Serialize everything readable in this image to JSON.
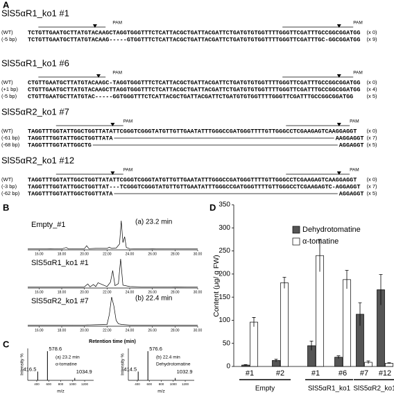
{
  "panel_labels": [
    "A",
    "B",
    "C",
    "D"
  ],
  "sequences": {
    "blocks": [
      {
        "title": "SlS5αR1_ko1 #1",
        "pam": [
          "PAM",
          "PAM"
        ],
        "rows": [
          {
            "label": "(WT)",
            "seq": "TCTGTTGAATGCTTATGTACAAGCTAGGTGGGTTTCTCATTACGCTGATTACGATTCTGATGTGTGGTTTTGGGTTCGATTTGCCGGCGGATGG",
            "count": "(x 0)"
          },
          {
            "label": "(-5 bp)",
            "seq": "TCTGTTGAATGCTTATGTACAAG-----GTGGTTTCTCATTACGCTGATTACGATTCTGATGTGTGGTTTTGGGTTCGATTTGC-GGCGGATGG",
            "count": "(x 9)"
          }
        ]
      },
      {
        "title": "SlS5αR1_ko1 #6",
        "pam": [
          "PAM",
          "PAM"
        ],
        "rows": [
          {
            "label": "(WT)",
            "seq": "CTGTTGAATGCTTATGTACAAGC-TAGGTGGGTTTCTCATTACGCTGATTACGATTCTGATGTGTGGTTTTGGGTTCGATTTGCCGGCGGATGG",
            "count": "(x 0)"
          },
          {
            "label": "(+1 bp)",
            "seq": "CTGTTGAATGCTTATGTACAAGCTTAGGTGGGTTTCTCATTACGCTGATTACGATTCTGATGTGTGGTTTTGGGTTCGATTTGCCGGCGGATGG",
            "count": "(x 4)"
          },
          {
            "label": "(-5 bp)",
            "seq": "CTGTTGAATGCTTATGTAC-----GGTGGGTTTCTCATTACGCTGATTACGATTCTGATGTGTGGTTTTGGGTTCGATTTGCCGGCGGATGG",
            "count": "(x 5)"
          }
        ]
      },
      {
        "title": "SlS5αR2_ko1 #7",
        "pam": [
          "PAM",
          "PAM"
        ],
        "rows": [
          {
            "label": "(WT)",
            "seq": "TAGGTTTGGTATTGGCTGGTTATATTCGGGTCGGGTATGTTGTTGAATATTTGGGCCGATGGGTTTTGTTGGGCCTCGAAGAGTCAAGGAGGT",
            "count": "(x 0)"
          },
          {
            "label": "(-61 bp)",
            "left": "TAGGTTTGGTATTGGCTGGTTATA",
            "right": "AAGGAGGT",
            "count": "(x 7)"
          },
          {
            "label": "(-68 bp)",
            "left": "TAGGTTTGGTATTGGCTG",
            "right": "AGGAGGT",
            "count": "(x 5)"
          }
        ]
      },
      {
        "title": "SlS5αR2_ko1 #12",
        "pam": [
          "PAM",
          "PAM"
        ],
        "rows": [
          {
            "label": "(WT)",
            "seq": "TAGGTTTGGTATTGGCTGGTTATATTCGGGTCGGGTATGTTGTTGAATATTTGGGCCGATGGGTTTTGTTGGGCCTCGAAGAGTCAAGGAGGT",
            "count": "(x 0)"
          },
          {
            "label": "(-3 bp)",
            "seq": "TAGGTTTGGTATTGGCTGGTTAT---TCGGGTCGGGTATGTTGTTGAATATTTGGGCCGATGGGTTTTGTTGGGCCTCGAAGAGTC-AGGAGGT",
            "count": "(x 7)"
          },
          {
            "label": "(-62 bp)",
            "left": "TAGGTTTGGTATTGGCTGGTTATA",
            "right": "AGGAGGT",
            "count": "(x 5)"
          }
        ]
      }
    ]
  },
  "chromatograms": {
    "xlabel": "Retention time (min)",
    "xlim": [
      15,
      30
    ],
    "ylim": [
      0,
      100
    ],
    "xticks": [
      {
        "value": 16,
        "label": "16.00"
      },
      {
        "value": 18,
        "label": "18.00"
      },
      {
        "value": 20,
        "label": "20.00"
      },
      {
        "value": 22,
        "label": "22.00"
      },
      {
        "value": 24,
        "label": "24.00"
      },
      {
        "value": 26,
        "label": "26.00"
      },
      {
        "value": 28,
        "label": "28.00"
      },
      {
        "value": 30,
        "label": "30.00"
      }
    ],
    "traces": [
      {
        "name": "Empty_#1",
        "annotation": "(a) 23.2 min",
        "x": [
          15,
          16,
          17,
          18,
          18.4,
          18.6,
          19,
          20,
          20.2,
          20.4,
          21,
          22,
          22.2,
          22.4,
          22.8,
          23.1,
          23.25,
          23.4,
          23.55,
          23.7,
          24,
          25,
          26,
          27,
          28,
          29,
          30
        ],
        "y": [
          3,
          3,
          4,
          3,
          8,
          3,
          4,
          4,
          14,
          4,
          5,
          5,
          9,
          5,
          6,
          20,
          100,
          25,
          45,
          8,
          4,
          3,
          4,
          3,
          3,
          3,
          3
        ]
      },
      {
        "name": "SlS5αR1_ko1 #1",
        "annotation": null,
        "x": [
          15,
          16,
          17,
          18,
          19,
          20,
          20.3,
          20.5,
          20.8,
          21,
          21.2,
          22,
          22.3,
          22.5,
          22.7,
          23,
          23.2,
          23.4,
          24,
          25,
          26,
          27,
          28,
          29,
          30
        ],
        "y": [
          3,
          3,
          3,
          4,
          4,
          4,
          14,
          4,
          12,
          5,
          18,
          5,
          20,
          60,
          8,
          15,
          100,
          10,
          5,
          4,
          4,
          3,
          4,
          3,
          3
        ]
      },
      {
        "name": "SlS5αR2_ko1 #7",
        "annotation": "(b) 22.4 min",
        "x": [
          15,
          16,
          17,
          18,
          19,
          20,
          21,
          22,
          22.2,
          22.4,
          22.6,
          22.8,
          23,
          23.3,
          24,
          25,
          26,
          27,
          28,
          29,
          30
        ],
        "y": [
          3,
          3,
          3,
          3,
          4,
          4,
          5,
          6,
          40,
          100,
          70,
          20,
          8,
          6,
          4,
          4,
          3,
          3,
          3,
          3,
          3
        ]
      }
    ]
  },
  "mass_spectra": {
    "ylabel": "Intensity %",
    "xlabel": "m/z",
    "xlim": [
      250,
      1350
    ],
    "ylim": [
      0,
      100
    ],
    "xticks": [
      400,
      600,
      800,
      1000,
      1200
    ],
    "spectra": [
      {
        "annotation": "(a) 23.2 min",
        "compound": "α-tomatine",
        "mz": [
          416.5,
          578.6,
          1034.9
        ],
        "intensity": [
          30,
          100,
          8
        ]
      },
      {
        "annotation": "(b) 22.4 min",
        "compound": "Dehydrotomatine",
        "mz": [
          414.5,
          576.6,
          1032.9
        ],
        "intensity": [
          30,
          100,
          8
        ]
      }
    ]
  },
  "chart_data": {
    "type": "bar",
    "ylabel": "Content (μg/ g FW)",
    "ylim": [
      0,
      350
    ],
    "yticks": [
      0,
      50,
      100,
      150,
      200,
      250,
      300,
      350
    ],
    "groups": [
      {
        "name": "Empty",
        "categories": [
          "#1",
          "#2"
        ]
      },
      {
        "name": "SlS5αR1_ko1",
        "categories": [
          "#1",
          "#6"
        ]
      },
      {
        "name": "SlS5αR2_ko1",
        "categories": [
          "#7",
          "#12"
        ]
      }
    ],
    "series": [
      {
        "name": "Dehydrotomatine",
        "color": "#555555",
        "values": [
          3,
          13,
          45,
          20,
          113,
          166
        ],
        "errors": [
          1,
          3,
          10,
          3,
          25,
          33
        ]
      },
      {
        "name": "α-tomatine",
        "color": "#ffffff",
        "values": [
          96,
          181,
          240,
          188,
          9,
          7
        ],
        "errors": [
          10,
          12,
          35,
          20,
          3,
          1
        ]
      }
    ]
  }
}
